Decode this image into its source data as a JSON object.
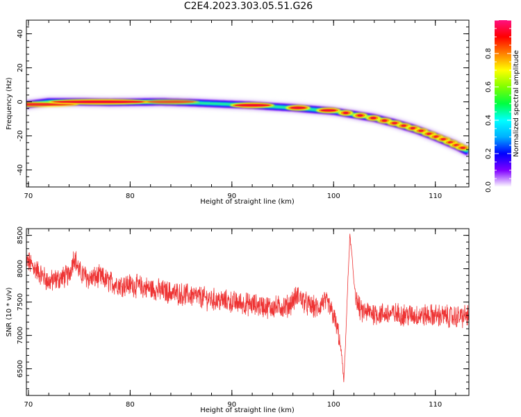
{
  "title": "C2E4.2023.303.05.51.G26",
  "chart_data": [
    {
      "type": "heatmap",
      "name": "spectrogram",
      "xlabel": "Height of straight line (km)",
      "ylabel": "Frequency (Hz)",
      "xlim": [
        69.8,
        113.3
      ],
      "ylim": [
        -50,
        48
      ],
      "xticks": [
        70,
        80,
        90,
        100,
        110
      ],
      "yticks": [
        -40,
        -20,
        0,
        20,
        40
      ],
      "ridge": {
        "x": [
          70.0,
          72.0,
          75.0,
          78.0,
          80.0,
          83.0,
          86.0,
          88.0,
          90.0,
          92.0,
          94.0,
          96.0,
          98.0,
          100.0,
          102.0,
          104.0,
          106.0,
          108.0,
          110.0,
          112.0,
          113.0
        ],
        "frequency": [
          -1.5,
          0,
          0,
          -0.3,
          -0.2,
          0,
          -0.5,
          -1.0,
          -1.5,
          -2.0,
          -2.8,
          -3.5,
          -4.5,
          -5.5,
          -7.5,
          -9.5,
          -12.5,
          -16.0,
          -20.5,
          -25.5,
          -28.5
        ]
      },
      "peaks": [
        {
          "x": 70.3,
          "frequency": -1.5,
          "amplitude": 0.8
        },
        {
          "x": 77.0,
          "frequency": 0,
          "amplitude": 1.0
        },
        {
          "x": 84.0,
          "frequency": 0,
          "amplitude": 0.55
        },
        {
          "x": 92.0,
          "frequency": -2.0,
          "amplitude": 1.0
        },
        {
          "x": 96.5,
          "frequency": -3.5,
          "amplitude": 1.0
        },
        {
          "x": 99.5,
          "frequency": -5.0,
          "amplitude": 1.0
        },
        {
          "x": 101.2,
          "frequency": -6.5,
          "amplitude": 1.0
        },
        {
          "x": 102.6,
          "frequency": -8.0,
          "amplitude": 1.0
        },
        {
          "x": 103.9,
          "frequency": -9.5,
          "amplitude": 1.0
        },
        {
          "x": 105.0,
          "frequency": -11.0,
          "amplitude": 0.95
        },
        {
          "x": 106.0,
          "frequency": -12.5,
          "amplitude": 0.95
        },
        {
          "x": 106.9,
          "frequency": -14.0,
          "amplitude": 0.9
        },
        {
          "x": 107.8,
          "frequency": -15.5,
          "amplitude": 0.9
        },
        {
          "x": 108.6,
          "frequency": -17.0,
          "amplitude": 0.9
        },
        {
          "x": 109.4,
          "frequency": -18.8,
          "amplitude": 0.9
        },
        {
          "x": 110.1,
          "frequency": -20.5,
          "amplitude": 0.9
        },
        {
          "x": 110.8,
          "frequency": -22.0,
          "amplitude": 0.9
        },
        {
          "x": 111.5,
          "frequency": -23.8,
          "amplitude": 0.9
        },
        {
          "x": 112.1,
          "frequency": -25.5,
          "amplitude": 0.9
        },
        {
          "x": 112.7,
          "frequency": -27.0,
          "amplitude": 0.9
        }
      ],
      "colorbar": {
        "label": "Normalized spectral amplitude",
        "range": [
          0.0,
          1.0
        ],
        "ticks": [
          "0.0",
          "0.2",
          "0.4",
          "0.6",
          "0.8"
        ],
        "tick_values": [
          0.0,
          0.2,
          0.4,
          0.6,
          0.8
        ],
        "colormap": [
          "#ffffff",
          "#8000ff",
          "#0000ff",
          "#00b0ff",
          "#00ffff",
          "#00ff40",
          "#80ff00",
          "#ffff00",
          "#ff8000",
          "#ff0000",
          "#ff1080"
        ]
      },
      "grid": false
    },
    {
      "type": "line",
      "name": "snr",
      "xlabel": "Height of straight line (km)",
      "ylabel": "SNR (10 * v/v)",
      "xlim": [
        69.8,
        113.3
      ],
      "ylim": [
        6100,
        8600
      ],
      "xticks": [
        70,
        80,
        90,
        100,
        110
      ],
      "yticks": [
        6500,
        7000,
        7500,
        8000,
        8500
      ],
      "color": "#ee3333",
      "grid": false,
      "series": [
        {
          "x": [
            70.0,
            71.0,
            72.0,
            73.0,
            74.0,
            74.5,
            75.0,
            76.0,
            77.0,
            78.0,
            79.0,
            80.0,
            82.0,
            84.0,
            86.0,
            88.0,
            90.0,
            92.0,
            94.0,
            95.5,
            96.5,
            97.5,
            98.5,
            99.0,
            99.5,
            100.0,
            100.5,
            100.8,
            101.0,
            101.2,
            101.4,
            101.6,
            101.8,
            102.0,
            102.3,
            102.7,
            103.5,
            104.5,
            106.0,
            108.0,
            110.0,
            111.5,
            112.5,
            113.3
          ],
          "values": [
            8100,
            7950,
            7800,
            7850,
            7900,
            8200,
            7950,
            7850,
            7880,
            7800,
            7760,
            7760,
            7700,
            7640,
            7600,
            7540,
            7500,
            7460,
            7420,
            7440,
            7600,
            7450,
            7400,
            7520,
            7450,
            7300,
            7000,
            6700,
            6300,
            7000,
            7800,
            8500,
            8200,
            7800,
            7500,
            7350,
            7350,
            7320,
            7320,
            7300,
            7300,
            7280,
            7280,
            7300
          ],
          "noise_amplitude": 150
        }
      ]
    }
  ]
}
